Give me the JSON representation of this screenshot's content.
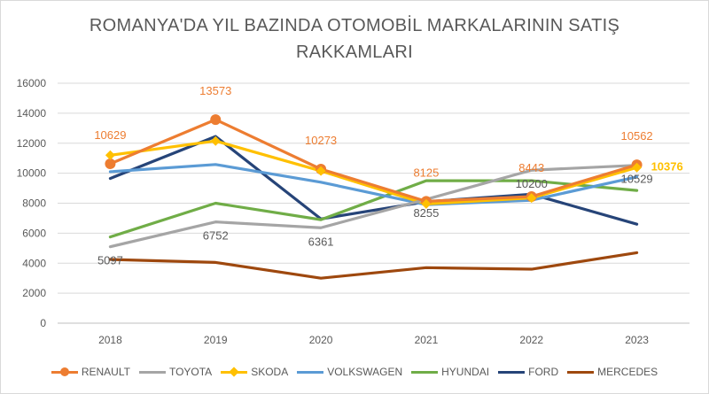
{
  "chart_data": {
    "type": "line",
    "title": "ROMANYA'DA YIL BAZINDA OTOMOBİL MARKALARININ SATIŞ RAKKAMLARI",
    "title_lines": [
      "ROMANYA'DA YIL BAZINDA OTOMOBİL MARKALARININ SATIŞ",
      "RAKKAMLARI"
    ],
    "categories": [
      "2018",
      "2019",
      "2020",
      "2021",
      "2022",
      "2023"
    ],
    "ylim": [
      0,
      16000
    ],
    "yticks": [
      "0",
      "2000",
      "4000",
      "6000",
      "8000",
      "10000",
      "12000",
      "14000",
      "16000"
    ],
    "grid": true,
    "legend_position": "bottom",
    "series": [
      {
        "name": "RENAULT",
        "color": "#ED7D31",
        "marker": "circle",
        "values": [
          10629,
          13573,
          10273,
          8125,
          8443,
          10562
        ]
      },
      {
        "name": "TOYOTA",
        "color": "#A5A5A5",
        "marker": "none",
        "values": [
          5097,
          6752,
          6361,
          8255,
          10200,
          10529
        ]
      },
      {
        "name": "SKODA",
        "color": "#FFC000",
        "marker": "diamond",
        "values": [
          11200,
          12150,
          10150,
          7950,
          8350,
          10376
        ]
      },
      {
        "name": "VOLKSWAGEN",
        "color": "#5B9BD5",
        "marker": "none",
        "values": [
          10100,
          10580,
          9400,
          7900,
          8200,
          9750
        ]
      },
      {
        "name": "HYUNDAI",
        "color": "#70AD47",
        "marker": "none",
        "values": [
          5750,
          8000,
          6900,
          9500,
          9500,
          8850
        ]
      },
      {
        "name": "FORD",
        "color": "#264478",
        "marker": "none",
        "values": [
          9650,
          12450,
          6950,
          8100,
          8600,
          6600
        ]
      },
      {
        "name": "MERCEDES",
        "color": "#9E480E",
        "marker": "none",
        "values": [
          4250,
          4050,
          3000,
          3700,
          3600,
          4700
        ]
      }
    ],
    "data_labels": [
      {
        "series": "RENAULT",
        "values": [
          "10629",
          "13573",
          "10273",
          "8125",
          "8443",
          "10562"
        ],
        "color": "#ED7D31",
        "position": "above"
      },
      {
        "series": "TOYOTA",
        "values": [
          "5097",
          "6752",
          "6361",
          "8255",
          "10200",
          "10529"
        ],
        "color": "#595959",
        "position": "below"
      },
      {
        "series": "SKODA",
        "values": [
          "10376"
        ],
        "index": [
          5
        ],
        "color": "#FFC000",
        "position": "right"
      }
    ]
  }
}
